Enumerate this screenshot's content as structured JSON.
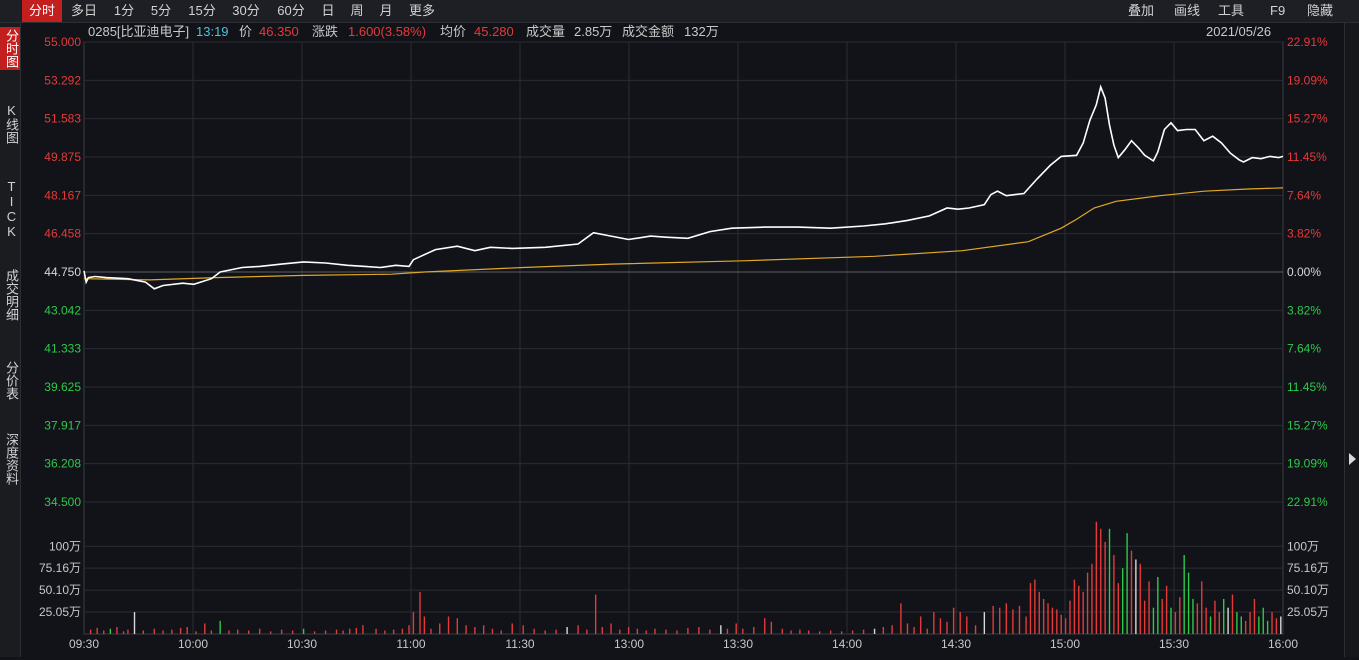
{
  "toolbar": {
    "periods": [
      "分时",
      "多日",
      "1分",
      "5分",
      "15分",
      "30分",
      "60分",
      "日",
      "周",
      "月",
      "更多"
    ],
    "active_period": 0,
    "right_items": [
      "叠加",
      "画线",
      "工具",
      "F9",
      "隐藏"
    ]
  },
  "sidebar": {
    "items": [
      "分时图",
      "K线图",
      "TICK",
      "成交明细",
      "分价表",
      "深度资料"
    ],
    "active": 0
  },
  "info": {
    "code_name": "0285[比亚迪电子]",
    "time": "13:19",
    "price_label": "价",
    "price": "46.350",
    "change_label": "涨跌",
    "change": "1.600(3.58%)",
    "avg_label": "均价",
    "avg": "45.280",
    "volume_label": "成交量",
    "volume": "2.85万",
    "amount_label": "成交金额",
    "amount": "132万",
    "date": "2021/05/26"
  },
  "colors": {
    "up": "#e53a3a",
    "down": "#2ec84a",
    "neutral": "#d8d8d8",
    "price_line": "#ffffff",
    "avg_line": "#e0a828",
    "cyan": "#4fc3d6",
    "grid": "#2a2d33"
  },
  "chart_data": {
    "type": "line",
    "x_ticks": [
      "09:30",
      "10:00",
      "10:30",
      "11:00",
      "11:30",
      "13:00",
      "13:30",
      "14:00",
      "14:30",
      "15:00",
      "15:30",
      "16:00"
    ],
    "price_axis": [
      "55.000",
      "53.292",
      "51.583",
      "49.875",
      "48.167",
      "46.458",
      "44.750",
      "43.042",
      "41.333",
      "39.625",
      "37.917",
      "36.208",
      "34.500"
    ],
    "pct_axis": [
      "22.91%",
      "19.09%",
      "15.27%",
      "11.45%",
      "7.64%",
      "3.82%",
      "0.00%",
      "3.82%",
      "7.64%",
      "11.45%",
      "15.27%",
      "19.09%",
      "22.91%"
    ],
    "y_range": [
      34.5,
      55.0
    ],
    "prev_close": 44.75,
    "volume_axis": [
      "100万",
      "75.16万",
      "50.10万",
      "25.05万"
    ],
    "volume_range": [
      0,
      130
    ],
    "price_series": {
      "name": "价格",
      "points": [
        [
          0,
          44.8
        ],
        [
          1,
          44.3
        ],
        [
          2,
          44.5
        ],
        [
          5,
          44.55
        ],
        [
          10,
          44.5
        ],
        [
          20,
          44.45
        ],
        [
          28,
          44.3
        ],
        [
          32,
          44.0
        ],
        [
          36,
          44.15
        ],
        [
          45,
          44.25
        ],
        [
          50,
          44.2
        ],
        [
          58,
          44.45
        ],
        [
          62,
          44.75
        ],
        [
          72,
          44.95
        ],
        [
          80,
          45.0
        ],
        [
          90,
          45.1
        ],
        [
          100,
          45.2
        ],
        [
          110,
          45.15
        ],
        [
          120,
          45.05
        ],
        [
          128,
          45.0
        ],
        [
          135,
          44.95
        ],
        [
          142,
          45.05
        ],
        [
          148,
          45.0
        ],
        [
          150,
          45.3
        ],
        [
          160,
          45.75
        ],
        [
          170,
          45.9
        ],
        [
          178,
          45.7
        ],
        [
          185,
          45.85
        ],
        [
          195,
          45.8
        ],
        [
          210,
          45.85
        ],
        [
          225,
          46.0
        ],
        [
          232,
          46.5
        ],
        [
          240,
          46.35
        ],
        [
          248,
          46.2
        ],
        [
          258,
          46.35
        ],
        [
          265,
          46.3
        ],
        [
          275,
          46.25
        ],
        [
          285,
          46.55
        ],
        [
          295,
          46.7
        ],
        [
          310,
          46.75
        ],
        [
          325,
          46.75
        ],
        [
          340,
          46.7
        ],
        [
          355,
          46.8
        ],
        [
          365,
          46.9
        ],
        [
          375,
          47.05
        ],
        [
          385,
          47.25
        ],
        [
          393,
          47.6
        ],
        [
          398,
          47.55
        ],
        [
          403,
          47.6
        ],
        [
          410,
          47.75
        ],
        [
          413,
          48.2
        ],
        [
          416,
          48.35
        ],
        [
          420,
          48.15
        ],
        [
          428,
          48.25
        ],
        [
          434,
          48.9
        ],
        [
          440,
          49.5
        ],
        [
          445,
          49.9
        ],
        [
          452,
          49.95
        ],
        [
          455,
          50.5
        ],
        [
          458,
          51.5
        ],
        [
          461,
          52.2
        ],
        [
          463,
          53.0
        ],
        [
          465,
          52.5
        ],
        [
          467,
          51.3
        ],
        [
          469,
          50.4
        ],
        [
          471,
          49.85
        ],
        [
          474,
          50.2
        ],
        [
          477,
          50.6
        ],
        [
          480,
          50.3
        ],
        [
          483,
          49.95
        ],
        [
          487,
          49.7
        ],
        [
          489,
          50.1
        ],
        [
          492,
          51.1
        ],
        [
          495,
          51.4
        ],
        [
          498,
          51.05
        ],
        [
          502,
          51.1
        ],
        [
          506,
          51.1
        ],
        [
          510,
          50.6
        ],
        [
          514,
          50.8
        ],
        [
          518,
          50.5
        ],
        [
          522,
          50.05
        ],
        [
          526,
          49.75
        ],
        [
          528,
          49.65
        ],
        [
          532,
          49.85
        ],
        [
          536,
          49.8
        ],
        [
          540,
          49.9
        ],
        [
          544,
          49.85
        ],
        [
          546,
          49.9
        ]
      ],
      "total_minutes": 546
    },
    "avg_series": {
      "name": "均价",
      "points": [
        [
          0,
          44.45
        ],
        [
          30,
          44.4
        ],
        [
          60,
          44.5
        ],
        [
          100,
          44.6
        ],
        [
          140,
          44.65
        ],
        [
          155,
          44.75
        ],
        [
          200,
          44.95
        ],
        [
          240,
          45.1
        ],
        [
          300,
          45.25
        ],
        [
          360,
          45.45
        ],
        [
          400,
          45.7
        ],
        [
          430,
          46.1
        ],
        [
          445,
          46.7
        ],
        [
          452,
          47.1
        ],
        [
          460,
          47.6
        ],
        [
          470,
          47.9
        ],
        [
          490,
          48.15
        ],
        [
          510,
          48.35
        ],
        [
          530,
          48.45
        ],
        [
          546,
          48.5
        ]
      ]
    },
    "volume_bars": [
      {
        "m": 3,
        "v": 5,
        "c": "up"
      },
      {
        "m": 6,
        "v": 7,
        "c": "up"
      },
      {
        "m": 9,
        "v": 4,
        "c": "up"
      },
      {
        "m": 12,
        "v": 6,
        "c": "down"
      },
      {
        "m": 15,
        "v": 8,
        "c": "up"
      },
      {
        "m": 18,
        "v": 3,
        "c": "up"
      },
      {
        "m": 20,
        "v": 5,
        "c": "up"
      },
      {
        "m": 23,
        "v": 25,
        "c": "neutral"
      },
      {
        "m": 27,
        "v": 4,
        "c": "up"
      },
      {
        "m": 32,
        "v": 6,
        "c": "up"
      },
      {
        "m": 36,
        "v": 4,
        "c": "up"
      },
      {
        "m": 40,
        "v": 5,
        "c": "up"
      },
      {
        "m": 44,
        "v": 7,
        "c": "up"
      },
      {
        "m": 47,
        "v": 8,
        "c": "up"
      },
      {
        "m": 51,
        "v": 3,
        "c": "up"
      },
      {
        "m": 55,
        "v": 12,
        "c": "up"
      },
      {
        "m": 58,
        "v": 4,
        "c": "up"
      },
      {
        "m": 62,
        "v": 15,
        "c": "down"
      },
      {
        "m": 66,
        "v": 4,
        "c": "up"
      },
      {
        "m": 70,
        "v": 5,
        "c": "up"
      },
      {
        "m": 75,
        "v": 4,
        "c": "up"
      },
      {
        "m": 80,
        "v": 6,
        "c": "up"
      },
      {
        "m": 85,
        "v": 3,
        "c": "up"
      },
      {
        "m": 90,
        "v": 5,
        "c": "up"
      },
      {
        "m": 95,
        "v": 4,
        "c": "up"
      },
      {
        "m": 100,
        "v": 6,
        "c": "down"
      },
      {
        "m": 105,
        "v": 3,
        "c": "up"
      },
      {
        "m": 110,
        "v": 4,
        "c": "up"
      },
      {
        "m": 115,
        "v": 5,
        "c": "up"
      },
      {
        "m": 118,
        "v": 4,
        "c": "up"
      },
      {
        "m": 121,
        "v": 6,
        "c": "up"
      },
      {
        "m": 124,
        "v": 7,
        "c": "up"
      },
      {
        "m": 127,
        "v": 10,
        "c": "up"
      },
      {
        "m": 133,
        "v": 6,
        "c": "up"
      },
      {
        "m": 137,
        "v": 4,
        "c": "up"
      },
      {
        "m": 141,
        "v": 5,
        "c": "up"
      },
      {
        "m": 145,
        "v": 6,
        "c": "up"
      },
      {
        "m": 148,
        "v": 10,
        "c": "up"
      },
      {
        "m": 150,
        "v": 25,
        "c": "up"
      },
      {
        "m": 153,
        "v": 48,
        "c": "up"
      },
      {
        "m": 155,
        "v": 20,
        "c": "up"
      },
      {
        "m": 158,
        "v": 6,
        "c": "up"
      },
      {
        "m": 162,
        "v": 12,
        "c": "up"
      },
      {
        "m": 166,
        "v": 20,
        "c": "up"
      },
      {
        "m": 170,
        "v": 18,
        "c": "up"
      },
      {
        "m": 174,
        "v": 10,
        "c": "up"
      },
      {
        "m": 178,
        "v": 8,
        "c": "up"
      },
      {
        "m": 182,
        "v": 10,
        "c": "up"
      },
      {
        "m": 186,
        "v": 6,
        "c": "up"
      },
      {
        "m": 190,
        "v": 4,
        "c": "up"
      },
      {
        "m": 195,
        "v": 12,
        "c": "up"
      },
      {
        "m": 200,
        "v": 10,
        "c": "up"
      },
      {
        "m": 205,
        "v": 6,
        "c": "up"
      },
      {
        "m": 210,
        "v": 4,
        "c": "up"
      },
      {
        "m": 215,
        "v": 5,
        "c": "up"
      },
      {
        "m": 220,
        "v": 8,
        "c": "neutral"
      },
      {
        "m": 225,
        "v": 10,
        "c": "up"
      },
      {
        "m": 229,
        "v": 5,
        "c": "up"
      },
      {
        "m": 233,
        "v": 45,
        "c": "up"
      },
      {
        "m": 236,
        "v": 8,
        "c": "up"
      },
      {
        "m": 240,
        "v": 12,
        "c": "up"
      },
      {
        "m": 244,
        "v": 5,
        "c": "up"
      },
      {
        "m": 248,
        "v": 8,
        "c": "up"
      },
      {
        "m": 252,
        "v": 6,
        "c": "up"
      },
      {
        "m": 256,
        "v": 4,
        "c": "up"
      },
      {
        "m": 260,
        "v": 6,
        "c": "up"
      },
      {
        "m": 265,
        "v": 5,
        "c": "up"
      },
      {
        "m": 270,
        "v": 4,
        "c": "up"
      },
      {
        "m": 275,
        "v": 7,
        "c": "up"
      },
      {
        "m": 280,
        "v": 8,
        "c": "up"
      },
      {
        "m": 285,
        "v": 5,
        "c": "up"
      },
      {
        "m": 290,
        "v": 10,
        "c": "neutral"
      },
      {
        "m": 293,
        "v": 6,
        "c": "up"
      },
      {
        "m": 297,
        "v": 12,
        "c": "up"
      },
      {
        "m": 300,
        "v": 6,
        "c": "up"
      },
      {
        "m": 305,
        "v": 8,
        "c": "up"
      },
      {
        "m": 310,
        "v": 18,
        "c": "up"
      },
      {
        "m": 313,
        "v": 14,
        "c": "up"
      },
      {
        "m": 318,
        "v": 6,
        "c": "up"
      },
      {
        "m": 322,
        "v": 4,
        "c": "up"
      },
      {
        "m": 326,
        "v": 5,
        "c": "up"
      },
      {
        "m": 330,
        "v": 4,
        "c": "up"
      },
      {
        "m": 335,
        "v": 3,
        "c": "up"
      },
      {
        "m": 340,
        "v": 4,
        "c": "up"
      },
      {
        "m": 345,
        "v": 3,
        "c": "up"
      },
      {
        "m": 350,
        "v": 4,
        "c": "up"
      },
      {
        "m": 355,
        "v": 5,
        "c": "up"
      },
      {
        "m": 360,
        "v": 6,
        "c": "neutral"
      },
      {
        "m": 364,
        "v": 8,
        "c": "up"
      },
      {
        "m": 368,
        "v": 10,
        "c": "up"
      },
      {
        "m": 372,
        "v": 35,
        "c": "up"
      },
      {
        "m": 375,
        "v": 12,
        "c": "up"
      },
      {
        "m": 378,
        "v": 8,
        "c": "up"
      },
      {
        "m": 381,
        "v": 20,
        "c": "up"
      },
      {
        "m": 384,
        "v": 6,
        "c": "up"
      },
      {
        "m": 387,
        "v": 25,
        "c": "up"
      },
      {
        "m": 390,
        "v": 18,
        "c": "up"
      },
      {
        "m": 393,
        "v": 14,
        "c": "up"
      },
      {
        "m": 396,
        "v": 30,
        "c": "up"
      },
      {
        "m": 399,
        "v": 25,
        "c": "up"
      },
      {
        "m": 402,
        "v": 20,
        "c": "up"
      },
      {
        "m": 406,
        "v": 10,
        "c": "up"
      },
      {
        "m": 410,
        "v": 25,
        "c": "neutral"
      },
      {
        "m": 414,
        "v": 32,
        "c": "up"
      },
      {
        "m": 417,
        "v": 30,
        "c": "up"
      },
      {
        "m": 420,
        "v": 35,
        "c": "up"
      },
      {
        "m": 423,
        "v": 28,
        "c": "up"
      },
      {
        "m": 426,
        "v": 32,
        "c": "up"
      },
      {
        "m": 429,
        "v": 20,
        "c": "up"
      },
      {
        "m": 431,
        "v": 58,
        "c": "up"
      },
      {
        "m": 433,
        "v": 62,
        "c": "up"
      },
      {
        "m": 435,
        "v": 48,
        "c": "up"
      },
      {
        "m": 437,
        "v": 40,
        "c": "up"
      },
      {
        "m": 439,
        "v": 35,
        "c": "up"
      },
      {
        "m": 441,
        "v": 30,
        "c": "up"
      },
      {
        "m": 443,
        "v": 28,
        "c": "up"
      },
      {
        "m": 445,
        "v": 22,
        "c": "up"
      },
      {
        "m": 447,
        "v": 18,
        "c": "up"
      },
      {
        "m": 449,
        "v": 38,
        "c": "up"
      },
      {
        "m": 451,
        "v": 62,
        "c": "up"
      },
      {
        "m": 453,
        "v": 55,
        "c": "up"
      },
      {
        "m": 455,
        "v": 48,
        "c": "up"
      },
      {
        "m": 457,
        "v": 70,
        "c": "up"
      },
      {
        "m": 459,
        "v": 80,
        "c": "up"
      },
      {
        "m": 461,
        "v": 128,
        "c": "up"
      },
      {
        "m": 463,
        "v": 120,
        "c": "up"
      },
      {
        "m": 465,
        "v": 105,
        "c": "up"
      },
      {
        "m": 467,
        "v": 120,
        "c": "down"
      },
      {
        "m": 469,
        "v": 90,
        "c": "up"
      },
      {
        "m": 471,
        "v": 58,
        "c": "up"
      },
      {
        "m": 473,
        "v": 75,
        "c": "down"
      },
      {
        "m": 475,
        "v": 115,
        "c": "down"
      },
      {
        "m": 477,
        "v": 95,
        "c": "up"
      },
      {
        "m": 479,
        "v": 85,
        "c": "neutral"
      },
      {
        "m": 481,
        "v": 80,
        "c": "up"
      },
      {
        "m": 483,
        "v": 38,
        "c": "up"
      },
      {
        "m": 485,
        "v": 60,
        "c": "up"
      },
      {
        "m": 487,
        "v": 30,
        "c": "down"
      },
      {
        "m": 489,
        "v": 65,
        "c": "down"
      },
      {
        "m": 491,
        "v": 40,
        "c": "up"
      },
      {
        "m": 493,
        "v": 55,
        "c": "up"
      },
      {
        "m": 495,
        "v": 30,
        "c": "down"
      },
      {
        "m": 497,
        "v": 25,
        "c": "up"
      },
      {
        "m": 499,
        "v": 42,
        "c": "up"
      },
      {
        "m": 501,
        "v": 90,
        "c": "down"
      },
      {
        "m": 503,
        "v": 70,
        "c": "down"
      },
      {
        "m": 505,
        "v": 40,
        "c": "down"
      },
      {
        "m": 507,
        "v": 35,
        "c": "up"
      },
      {
        "m": 509,
        "v": 60,
        "c": "up"
      },
      {
        "m": 511,
        "v": 30,
        "c": "up"
      },
      {
        "m": 513,
        "v": 20,
        "c": "down"
      },
      {
        "m": 515,
        "v": 38,
        "c": "up"
      },
      {
        "m": 517,
        "v": 25,
        "c": "up"
      },
      {
        "m": 519,
        "v": 40,
        "c": "down"
      },
      {
        "m": 521,
        "v": 30,
        "c": "neutral"
      },
      {
        "m": 523,
        "v": 45,
        "c": "up"
      },
      {
        "m": 525,
        "v": 25,
        "c": "down"
      },
      {
        "m": 527,
        "v": 20,
        "c": "down"
      },
      {
        "m": 529,
        "v": 15,
        "c": "up"
      },
      {
        "m": 531,
        "v": 25,
        "c": "up"
      },
      {
        "m": 533,
        "v": 40,
        "c": "up"
      },
      {
        "m": 535,
        "v": 20,
        "c": "down"
      },
      {
        "m": 537,
        "v": 30,
        "c": "down"
      },
      {
        "m": 539,
        "v": 15,
        "c": "down"
      },
      {
        "m": 541,
        "v": 25,
        "c": "up"
      },
      {
        "m": 543,
        "v": 18,
        "c": "up"
      },
      {
        "m": 545,
        "v": 20,
        "c": "neutral"
      }
    ]
  }
}
